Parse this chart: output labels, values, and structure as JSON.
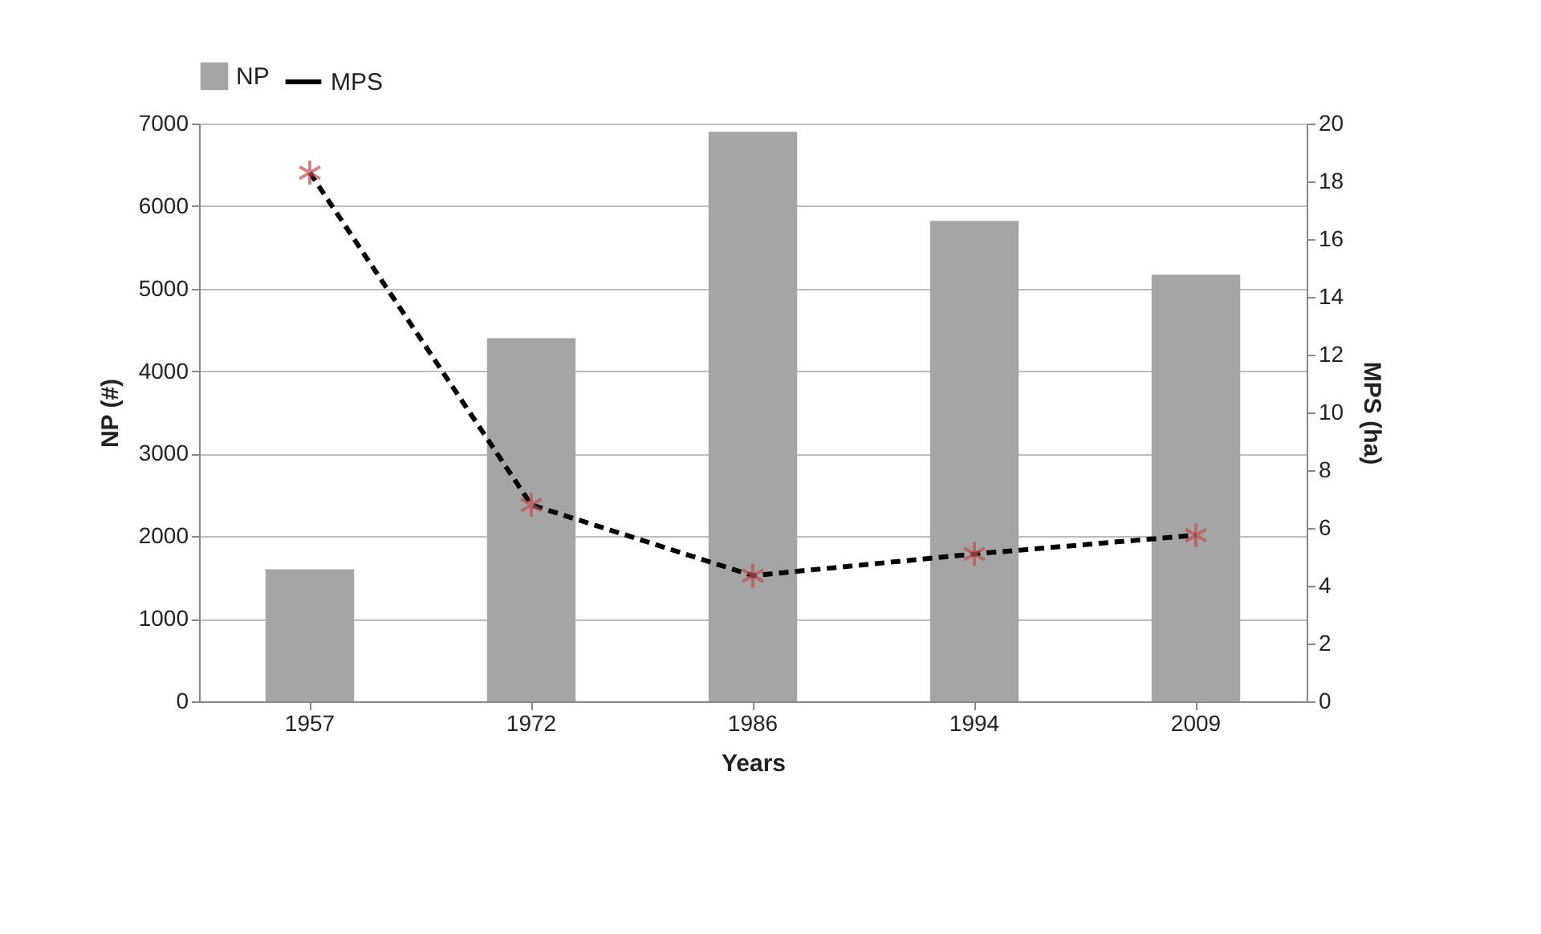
{
  "chart_data": {
    "type": "bar",
    "xlabel": "Years",
    "ylabel": "NP (#)",
    "y2label": "MPS (ha)",
    "categories": [
      "1957",
      "1972",
      "1986",
      "1994",
      "2009"
    ],
    "series": [
      {
        "name": "NP",
        "color": "#a5a5a5",
        "values": [
          1600,
          4400,
          6900,
          5820,
          5170
        ]
      },
      {
        "name": "MPS",
        "type": "line",
        "axis": "y2",
        "color": "#000000",
        "marker": "cross",
        "line_style": "dashed",
        "values": [
          18.3,
          6.8,
          4.35,
          5.1,
          5.75
        ]
      }
    ],
    "ylim": [
      0,
      7000
    ],
    "yticks": [
      0,
      1000,
      2000,
      3000,
      4000,
      5000,
      6000,
      7000
    ],
    "y2lim": [
      0,
      20
    ],
    "y2ticks": [
      0,
      2,
      4,
      6,
      8,
      10,
      12,
      14,
      16,
      18,
      20
    ],
    "grid": "y",
    "legend": "top"
  }
}
